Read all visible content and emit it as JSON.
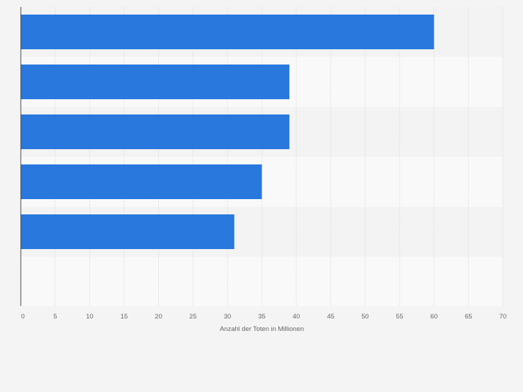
{
  "chart_data": {
    "type": "bar",
    "orientation": "horizontal",
    "categories": [
      "",
      "",
      "",
      "",
      ""
    ],
    "values": [
      60,
      39,
      39,
      35,
      31
    ],
    "xlabel": "Anzahl der Toten in Millionen",
    "ylabel": "",
    "xlim": [
      0,
      70
    ],
    "xticks": [
      "0",
      "5",
      "10",
      "15",
      "20",
      "25",
      "30",
      "35",
      "40",
      "45",
      "50",
      "55",
      "60",
      "65",
      "70"
    ],
    "grid": true,
    "bar_color": "#2878de",
    "stripe_colors": [
      "#f3f3f3",
      "#f9f9f9"
    ],
    "background_color": "#f4f4f4",
    "gridline_color": "#dcdcdc",
    "axis_color": "#444444",
    "text_color": "#666666"
  }
}
